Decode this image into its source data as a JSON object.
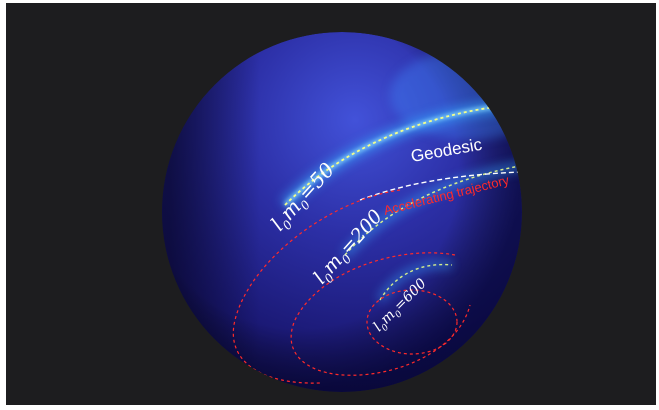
{
  "labels": {
    "geodesic": "Geodesic",
    "accelerating": "Accelerating trajectory",
    "l50": {
      "sym_l": "l",
      "sub1": "0",
      "sym_m": "m",
      "sub2": "0",
      "value": "=50"
    },
    "l200": {
      "sym_l": "l",
      "sub1": "0",
      "sym_m": "m",
      "sub2": "0",
      "value": "=200"
    },
    "l600": {
      "sym_l": "l",
      "sub1": "0",
      "sym_m": "m",
      "sub2": "0",
      "value": "=600"
    }
  },
  "colors": {
    "frame": "#1d1d1f",
    "sphere_light": "#3b4fd2",
    "sphere_dark": "#0d0b3a",
    "beam_glow": "#36a8ff",
    "beam_core": "#f0ff90",
    "geodesic": "#ffffff",
    "accelerating": "#ff2a2a"
  }
}
